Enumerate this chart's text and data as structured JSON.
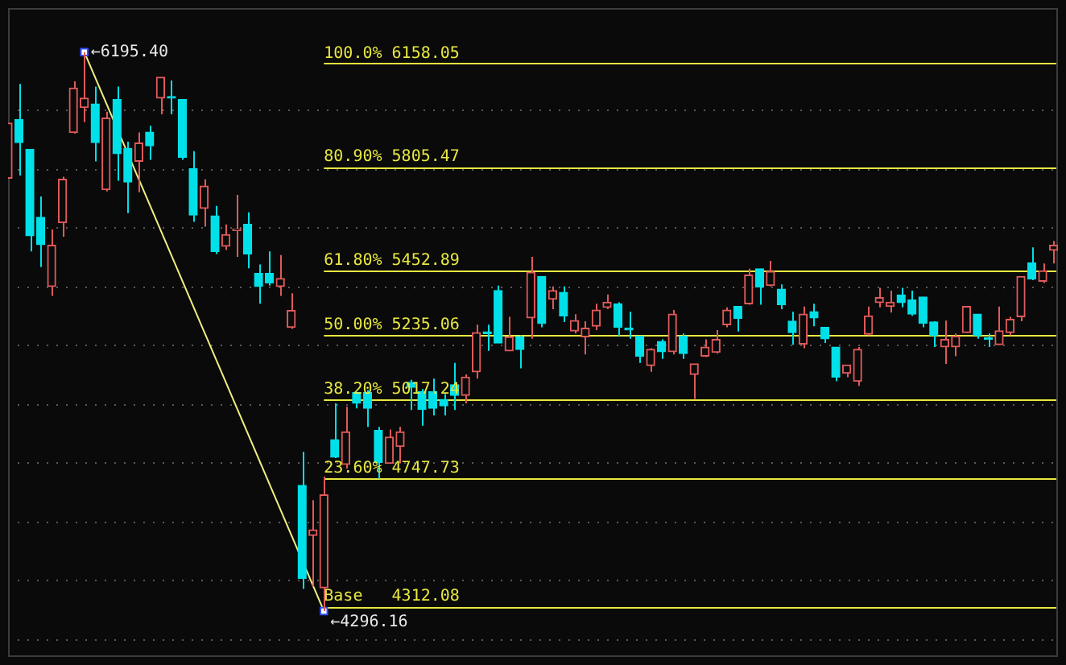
{
  "chart_data": {
    "type": "candlestick",
    "categories": [
      null,
      null,
      null,
      null,
      null,
      null,
      null,
      null,
      null,
      null,
      null,
      null,
      null,
      null,
      null,
      null,
      null,
      null,
      null,
      null,
      null,
      null,
      null,
      null,
      null,
      null,
      null,
      null,
      null,
      null,
      null,
      null,
      null,
      null,
      null,
      null,
      null,
      null,
      null,
      null,
      null,
      null,
      null,
      null,
      null,
      null,
      null,
      null,
      null,
      null,
      null,
      null,
      null,
      null,
      null,
      null,
      null,
      null,
      null,
      null,
      null,
      null,
      null,
      null,
      null,
      null,
      null,
      null,
      null,
      null,
      null,
      null,
      null,
      null,
      null,
      null,
      null,
      null,
      null,
      null,
      null,
      null,
      null,
      null,
      null,
      null,
      null,
      null,
      null,
      null,
      null,
      null,
      null,
      null,
      null,
      null,
      null
    ],
    "ohlc": [
      [
        5767,
        5954,
        5767,
        5954
      ],
      [
        5966,
        6087,
        5776,
        5888
      ],
      [
        5865,
        5865,
        5518,
        5571
      ],
      [
        5634,
        5705,
        5465,
        5541
      ],
      [
        5399,
        5593,
        5367,
        5539
      ],
      [
        5616,
        5772,
        5568,
        5763
      ],
      [
        5922,
        6096,
        5918,
        6073
      ],
      [
        6007,
        6195.4,
        5957,
        6039
      ],
      [
        6019,
        6078,
        5824,
        5888
      ],
      [
        5728,
        5993,
        5722,
        5971
      ],
      [
        6034,
        6078,
        5758,
        5850
      ],
      [
        5868,
        5891,
        5648,
        5754
      ],
      [
        5824,
        5922,
        5719,
        5886
      ],
      [
        5923,
        5945,
        5829,
        5877
      ],
      [
        6039,
        6110,
        5984,
        6110
      ],
      [
        6042,
        6099,
        5984,
        6039
      ],
      [
        6034,
        6034,
        5829,
        5838
      ],
      [
        5799,
        5859,
        5619,
        5642
      ],
      [
        5664,
        5763,
        5602,
        5740
      ],
      [
        5639,
        5673,
        5509,
        5518
      ],
      [
        5536,
        5610,
        5523,
        5575
      ],
      [
        5589,
        5710,
        5500,
        5593
      ],
      [
        5610,
        5651,
        5461,
        5509
      ],
      [
        5443,
        5474,
        5340,
        5399
      ],
      [
        5443,
        5518,
        5402,
        5411
      ],
      [
        5399,
        5506,
        5367,
        5426
      ],
      [
        5260,
        5376,
        5255,
        5317
      ],
      [
        4723,
        4837,
        4371,
        4407
      ],
      [
        4553,
        4673,
        4380,
        4572
      ],
      [
        4375,
        4753,
        4296.16,
        4691
      ],
      [
        4878,
        5002,
        4816,
        4819
      ],
      [
        4794,
        4990,
        4780,
        4905
      ],
      [
        5038,
        5038,
        4985,
        5002
      ],
      [
        5038,
        5047,
        4922,
        4985
      ],
      [
        4910,
        4922,
        4745,
        4801
      ],
      [
        4798,
        4913,
        4798,
        4887
      ],
      [
        4855,
        4922,
        4798,
        4905
      ],
      [
        5073,
        5082,
        4979,
        5056
      ],
      [
        5041,
        5050,
        4926,
        4981
      ],
      [
        5041,
        5086,
        4961,
        4985
      ],
      [
        5015,
        5033,
        4961,
        4993
      ],
      [
        5065,
        5139,
        4979,
        5029
      ],
      [
        5029,
        5100,
        5002,
        5091
      ],
      [
        5109,
        5269,
        5086,
        5242
      ],
      [
        5244,
        5269,
        5180,
        5239
      ],
      [
        5385,
        5402,
        5207,
        5207
      ],
      [
        5180,
        5296,
        5180,
        5228
      ],
      [
        5228,
        5233,
        5121,
        5185
      ],
      [
        5292,
        5500,
        5221,
        5447
      ],
      [
        5433,
        5433,
        5260,
        5273
      ],
      [
        5356,
        5399,
        5322,
        5385
      ],
      [
        5379,
        5399,
        5278,
        5299
      ],
      [
        5248,
        5305,
        5239,
        5283
      ],
      [
        5228,
        5281,
        5168,
        5257
      ],
      [
        5264,
        5340,
        5251,
        5319
      ],
      [
        5328,
        5372,
        5322,
        5345
      ],
      [
        5340,
        5345,
        5228,
        5260
      ],
      [
        5257,
        5313,
        5221,
        5251
      ],
      [
        5230,
        5230,
        5139,
        5162
      ],
      [
        5130,
        5189,
        5109,
        5185
      ],
      [
        5212,
        5219,
        5153,
        5177
      ],
      [
        5177,
        5319,
        5168,
        5305
      ],
      [
        5230,
        5239,
        5153,
        5171
      ],
      [
        5100,
        5136,
        5017,
        5136
      ],
      [
        5162,
        5219,
        5159,
        5193
      ],
      [
        5175,
        5251,
        5171,
        5219
      ],
      [
        5269,
        5328,
        5260,
        5319
      ],
      [
        5331,
        5331,
        5246,
        5290
      ],
      [
        5340,
        5459,
        5337,
        5438
      ],
      [
        5459,
        5459,
        5337,
        5397
      ],
      [
        5402,
        5486,
        5399,
        5450
      ],
      [
        5390,
        5406,
        5322,
        5337
      ],
      [
        5281,
        5313,
        5201,
        5242
      ],
      [
        5203,
        5331,
        5189,
        5305
      ],
      [
        5313,
        5340,
        5264,
        5292
      ],
      [
        5260,
        5260,
        5207,
        5221
      ],
      [
        5193,
        5193,
        5077,
        5091
      ],
      [
        5104,
        5132,
        5091,
        5132
      ],
      [
        5077,
        5193,
        5061,
        5185
      ],
      [
        5237,
        5331,
        5233,
        5299
      ],
      [
        5344,
        5394,
        5328,
        5361
      ],
      [
        5331,
        5385,
        5310,
        5345
      ],
      [
        5370,
        5394,
        5328,
        5344
      ],
      [
        5353,
        5385,
        5299,
        5305
      ],
      [
        5363,
        5363,
        5260,
        5274
      ],
      [
        5278,
        5281,
        5193,
        5233
      ],
      [
        5194,
        5283,
        5136,
        5219
      ],
      [
        5194,
        5239,
        5162,
        5230
      ],
      [
        5242,
        5331,
        5242,
        5331
      ],
      [
        5305,
        5305,
        5221,
        5233
      ],
      [
        5223,
        5239,
        5193,
        5219
      ],
      [
        5201,
        5331,
        5201,
        5248
      ],
      [
        5242,
        5296,
        5233,
        5287
      ],
      [
        5296,
        5434,
        5281,
        5433
      ],
      [
        5479,
        5532,
        5420,
        5424
      ],
      [
        5417,
        5477,
        5411,
        5452
      ],
      [
        5522,
        5554,
        5477,
        5539
      ]
    ],
    "colors": [
      "#e05a5a",
      "#00e0e8",
      "#00e0e8",
      "#00e0e8",
      "#e05a5a",
      "#e05a5a",
      "#e05a5a",
      "#e05a5a",
      "#00e0e8",
      "#e05a5a",
      "#00e0e8",
      "#00e0e8",
      "#e05a5a",
      "#00e0e8",
      "#e05a5a",
      "#00e0e8",
      "#00e0e8",
      "#00e0e8",
      "#e05a5a",
      "#00e0e8",
      "#e05a5a",
      "#e05a5a",
      "#00e0e8",
      "#00e0e8",
      "#00e0e8",
      "#e05a5a",
      "#e05a5a",
      "#00e0e8",
      "#e05a5a",
      "#e05a5a",
      "#00e0e8",
      "#e05a5a",
      "#00e0e8",
      "#00e0e8",
      "#00e0e8",
      "#e05a5a",
      "#e05a5a",
      "#00e0e8",
      "#00e0e8",
      "#00e0e8",
      "#00e0e8",
      "#00e0e8",
      "#e05a5a",
      "#e05a5a",
      "#00e0e8",
      "#00e0e8",
      "#e05a5a",
      "#00e0e8",
      "#e05a5a",
      "#00e0e8",
      "#e05a5a",
      "#00e0e8",
      "#e05a5a",
      "#e05a5a",
      "#e05a5a",
      "#e05a5a",
      "#00e0e8",
      "#00e0e8",
      "#00e0e8",
      "#e05a5a",
      "#00e0e8",
      "#e05a5a",
      "#00e0e8",
      "#e05a5a",
      "#e05a5a",
      "#e05a5a",
      "#e05a5a",
      "#00e0e8",
      "#e05a5a",
      "#00e0e8",
      "#e05a5a",
      "#00e0e8",
      "#00e0e8",
      "#e05a5a",
      "#00e0e8",
      "#00e0e8",
      "#00e0e8",
      "#e05a5a",
      "#e05a5a",
      "#e05a5a",
      "#e05a5a",
      "#e05a5a",
      "#00e0e8",
      "#00e0e8",
      "#00e0e8",
      "#00e0e8",
      "#e05a5a",
      "#e05a5a",
      "#e05a5a",
      "#00e0e8",
      "#00e0e8",
      "#e05a5a",
      "#e05a5a",
      "#e05a5a",
      "#00e0e8",
      "#e05a5a",
      "#e05a5a"
    ],
    "series": [
      {
        "type": "line",
        "values": [
          null,
          null,
          null,
          null,
          null,
          null,
          null,
          6195.4,
          null,
          null,
          null,
          null,
          null,
          null,
          null,
          null,
          null,
          null,
          null,
          null,
          null,
          null,
          null,
          null,
          null,
          null,
          null,
          null,
          null,
          4296.16,
          null,
          null,
          null,
          null,
          null,
          null,
          null,
          null,
          null,
          null,
          null,
          null,
          null,
          null,
          null,
          null,
          null,
          null,
          null,
          null,
          null,
          null,
          null,
          null,
          null,
          null,
          null,
          null,
          null,
          null,
          null,
          null,
          null,
          null,
          null,
          null,
          null,
          null,
          null,
          null,
          null,
          null,
          null,
          null,
          null,
          null,
          null,
          null,
          null,
          null,
          null,
          null,
          null,
          null,
          null,
          null,
          null,
          null,
          null,
          null,
          null,
          null,
          null,
          null,
          null,
          null,
          null
        ],
        "color": "#f0f080",
        "marker": "square"
      }
    ],
    "ylim": [
      4140,
      6345
    ],
    "yticks": [
      {
        "value": 4200,
        "label": null
      },
      {
        "value": 4400,
        "label": null
      },
      {
        "value": 4600,
        "label": null
      },
      {
        "value": 4800,
        "label": null
      },
      {
        "value": 5000,
        "label": null
      },
      {
        "value": 5200,
        "label": null
      },
      {
        "value": 5400,
        "label": null
      },
      {
        "value": 5600,
        "label": null
      },
      {
        "value": 5800,
        "label": null
      },
      {
        "value": 6000,
        "label": null
      }
    ],
    "grid": "y",
    "tick_labels": false,
    "legend": false,
    "ref_lines": [
      {
        "axis": "y",
        "value": 6158.05,
        "label": "100.0% 6158.05",
        "color": "#e8e840"
      },
      {
        "axis": "y",
        "value": 5805.47,
        "label": "80.90% 5805.47",
        "color": "#e8e840"
      },
      {
        "axis": "y",
        "value": 5452.89,
        "label": "61.80% 5452.89",
        "color": "#e8e840"
      },
      {
        "axis": "y",
        "value": 5235.06,
        "label": "50.00% 5235.06",
        "color": "#e8e840"
      },
      {
        "axis": "y",
        "value": 5017.24,
        "label": "38.20% 5017.24",
        "color": "#e8e840"
      },
      {
        "axis": "y",
        "value": 4747.73,
        "label": "23.60% 4747.73",
        "color": "#e8e840"
      },
      {
        "axis": "y",
        "value": 4312.08,
        "label": "Base   4312.08",
        "color": "#e8e840"
      }
    ],
    "annotations": [
      "←6195.40",
      "←4296.16"
    ]
  }
}
